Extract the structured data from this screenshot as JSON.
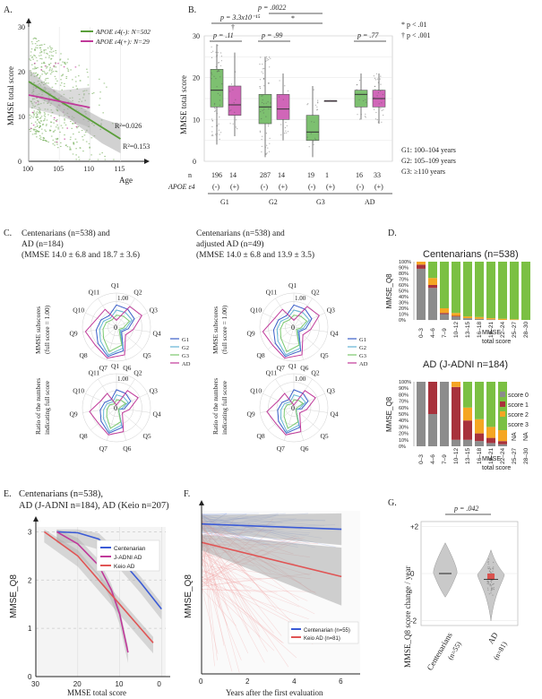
{
  "chart_data": [
    {
      "panel": "A.",
      "type": "scatter",
      "ylabel": "MMSE total score",
      "xlabel": "Age",
      "xlim": [
        100,
        118
      ],
      "ylim": [
        0,
        30
      ],
      "x_ticks": [
        "100",
        "105",
        "110",
        "115"
      ],
      "y_ticks": [
        "0",
        "10",
        "20",
        "30"
      ],
      "series": [
        {
          "name": "APOE ε4(-): N=502",
          "color": "#5a9e3a",
          "fit": [
            [
              100,
              17.8
            ],
            [
              115,
              5.0
            ]
          ],
          "r2": "R²=0.153"
        },
        {
          "name": "APOE ε4(+): N=29",
          "color": "#c0399a",
          "fit": [
            [
              100,
              14.8
            ],
            [
              110,
              12.0
            ]
          ],
          "r2": "R²=0.026"
        }
      ]
    },
    {
      "panel": "B.",
      "type": "box",
      "ylabel": "MMSE total score",
      "ylim": [
        0,
        30
      ],
      "y_ticks": [
        "0",
        "10",
        "20",
        "30"
      ],
      "top_pvalues": [
        "p = 3.3x10⁻¹⁵",
        "p = .0022"
      ],
      "top_marks": [
        "†",
        "*"
      ],
      "group_pvalues": [
        "p = .11",
        "p = .99",
        "p = .77"
      ],
      "legend_sig": [
        "* p < .01",
        "† p < .001"
      ],
      "group_labels": [
        "G1",
        "G2",
        "G3",
        "AD"
      ],
      "group_defs": [
        "G1: 100–104 years",
        "G2: 105–109 years",
        "G3: ≥110 years"
      ],
      "n_label": "n",
      "apoe_label": "APOE ε4",
      "boxes": [
        {
          "group": "G1",
          "apoe": "(-)",
          "n": "196",
          "q1": 13,
          "median": 17,
          "q3": 22,
          "min": 4,
          "max": 28,
          "color": "#7dc070"
        },
        {
          "group": "G1",
          "apoe": "(+)",
          "n": "14",
          "q1": 11,
          "median": 13.5,
          "q3": 18,
          "min": 6,
          "max": 26,
          "color": "#d066b8"
        },
        {
          "group": "G2",
          "apoe": "(-)",
          "n": "287",
          "q1": 9,
          "median": 13,
          "q3": 16,
          "min": 1,
          "max": 25,
          "color": "#7dc070"
        },
        {
          "group": "G2",
          "apoe": "(+)",
          "n": "14",
          "q1": 10,
          "median": 12.5,
          "q3": 16,
          "min": 5,
          "max": 21,
          "color": "#d066b8"
        },
        {
          "group": "G3",
          "apoe": "(-)",
          "n": "19",
          "q1": 5,
          "median": 7,
          "q3": 11,
          "min": 1,
          "max": 18,
          "color": "#7dc070"
        },
        {
          "group": "G3",
          "apoe": "(+)",
          "n": "1",
          "q1": 14.5,
          "median": 14.5,
          "q3": 14.5,
          "min": 14.5,
          "max": 14.5,
          "color": "#d066b8"
        },
        {
          "group": "AD",
          "apoe": "(-)",
          "n": "16",
          "q1": 13,
          "median": 16,
          "q3": 17,
          "min": 10,
          "max": 21,
          "color": "#7dc070"
        },
        {
          "group": "AD",
          "apoe": "(+)",
          "n": "33",
          "q1": 13,
          "median": 15,
          "q3": 17,
          "min": 9,
          "max": 21,
          "color": "#d066b8"
        }
      ]
    },
    {
      "panel": "C.",
      "type": "radar",
      "headers": [
        [
          "Centenarians (n=538) and",
          "AD (n=184)",
          "(MMSE 14.0 ± 6.8  and 18.7 ± 3.6)"
        ],
        [
          "Centenarians (n=538) and",
          "adjusted AD (n=49)",
          "(MMSE 14.0 ± 6.8  and 13.9 ± 3.5)"
        ]
      ],
      "row_labels": [
        [
          "MMSE subscores",
          "(full score = 1.00)"
        ],
        [
          "Ratio of the numbers",
          "indicating full score"
        ]
      ],
      "axes": [
        "Q1",
        "Q2",
        "Q3",
        "Q4",
        "Q5",
        "Q6",
        "Q7",
        "Q8",
        "Q9",
        "Q10",
        "Q11"
      ],
      "ring_labels": [
        "1.00",
        "0"
      ],
      "series": [
        {
          "name": "G1",
          "color": "#3b5fc9",
          "values": [
            0.65,
            0.62,
            0.58,
            0.35,
            0.2,
            0.72,
            0.9,
            0.72,
            0.6,
            0.5,
            0.4
          ]
        },
        {
          "name": "G2",
          "color": "#64b5d6",
          "values": [
            0.5,
            0.5,
            0.5,
            0.28,
            0.15,
            0.65,
            0.85,
            0.62,
            0.5,
            0.42,
            0.32
          ]
        },
        {
          "name": "G3",
          "color": "#7bc96f",
          "values": [
            0.35,
            0.38,
            0.42,
            0.2,
            0.1,
            0.55,
            0.75,
            0.5,
            0.4,
            0.33,
            0.25
          ]
        },
        {
          "name": "AD",
          "color": "#c0399a",
          "values": [
            0.2,
            0.72,
            0.82,
            0.5,
            0.35,
            0.85,
            0.95,
            0.82,
            0.92,
            0.62,
            0.62
          ]
        }
      ]
    },
    {
      "panel": "D.",
      "type": "stacked-bar",
      "titles": [
        "Centenarians (n=538)",
        "AD (J-ADNI n=184)"
      ],
      "ylabel": "MMSE_Q8",
      "xlabel": "MMSE total score",
      "y_ticks": [
        "0%",
        "10%",
        "20%",
        "30%",
        "40%",
        "50%",
        "60%",
        "70%",
        "80%",
        "90%",
        "100%"
      ],
      "categories": [
        "0–3",
        "4–6",
        "7–9",
        "10–12",
        "13–15",
        "16–18",
        "19–21",
        "22–24",
        "25–27",
        "28–30"
      ],
      "legend": [
        "score 0",
        "score 1",
        "score 2",
        "score 3"
      ],
      "colors": [
        "#8c8c8c",
        "#a8323c",
        "#f5a623",
        "#7bc043"
      ],
      "na_label": "NA",
      "centenarians": [
        [
          88,
          7,
          5,
          0
        ],
        [
          55,
          5,
          12,
          28
        ],
        [
          10,
          2,
          8,
          80
        ],
        [
          6,
          1,
          5,
          88
        ],
        [
          3,
          0,
          3,
          94
        ],
        [
          2,
          0,
          3,
          95
        ],
        [
          1,
          0,
          2,
          97
        ],
        [
          0,
          0,
          2,
          98
        ],
        [
          0,
          0,
          1,
          99
        ],
        [
          0,
          0,
          0,
          100
        ]
      ],
      "ad": [
        [
          100,
          0,
          0,
          0
        ],
        [
          50,
          50,
          0,
          0
        ],
        [
          100,
          0,
          0,
          0
        ],
        [
          10,
          82,
          8,
          0
        ],
        [
          10,
          30,
          20,
          40
        ],
        [
          8,
          12,
          22,
          58
        ],
        [
          5,
          8,
          17,
          70
        ],
        [
          3,
          5,
          17,
          75
        ],
        null,
        null
      ]
    },
    {
      "panel": "E.",
      "type": "line",
      "title": [
        "Centenarians (n=538),",
        "AD (J-ADNI n=184), AD (Keio n=207)"
      ],
      "ylabel": "MMSE_Q8",
      "xlabel": "MMSE total score",
      "xlim": [
        30,
        -1
      ],
      "ylim": [
        0,
        3.1
      ],
      "x_ticks": [
        "30",
        "20",
        "10",
        "0"
      ],
      "y_ticks": [
        "0",
        "1",
        "2",
        "3"
      ],
      "series": [
        {
          "name": "Centenarian",
          "color": "#3b5bd6",
          "points": [
            [
              25,
              3.0
            ],
            [
              20,
              2.98
            ],
            [
              15,
              2.85
            ],
            [
              10,
              2.45
            ],
            [
              5,
              1.95
            ],
            [
              0,
              1.4
            ]
          ]
        },
        {
          "name": "J-ADNI AD",
          "color": "#c0399a",
          "points": [
            [
              25,
              3.0
            ],
            [
              20,
              2.75
            ],
            [
              15,
              2.3
            ],
            [
              12,
              1.8
            ],
            [
              10,
              1.3
            ],
            [
              8,
              0.5
            ]
          ]
        },
        {
          "name": "Keio AD",
          "color": "#e05555",
          "points": [
            [
              28,
              3.0
            ],
            [
              20,
              2.5
            ],
            [
              15,
              2.0
            ],
            [
              10,
              1.5
            ],
            [
              5,
              1.0
            ],
            [
              2,
              0.7
            ]
          ]
        }
      ]
    },
    {
      "panel": "F.",
      "type": "line",
      "ylabel": "MMSE_Q8",
      "xlabel": "Years after the first evaluation",
      "xlim": [
        0,
        6.8
      ],
      "ylim": [
        0,
        3.1
      ],
      "x_ticks": [
        "0",
        "2",
        "4",
        "6"
      ],
      "series": [
        {
          "name": "Centenarian (n=55)",
          "color": "#3b5bd6",
          "points": [
            [
              0,
              2.85
            ],
            [
              6,
              2.75
            ]
          ]
        },
        {
          "name": "Keio AD (n=81)",
          "color": "#e05555",
          "points": [
            [
              0,
              2.5
            ],
            [
              6,
              1.85
            ]
          ]
        }
      ]
    },
    {
      "panel": "G.",
      "type": "violin",
      "ylabel": "MMSE_Q8 score change / year",
      "pvalue": "p = .042",
      "ylim": [
        -2.2,
        2.2
      ],
      "y_ticks": [
        "+2",
        "0",
        "-2"
      ],
      "categories": [
        "Centenarians (n=55)",
        "AD (n=81)"
      ],
      "values": [
        0.0,
        -0.25
      ]
    }
  ]
}
